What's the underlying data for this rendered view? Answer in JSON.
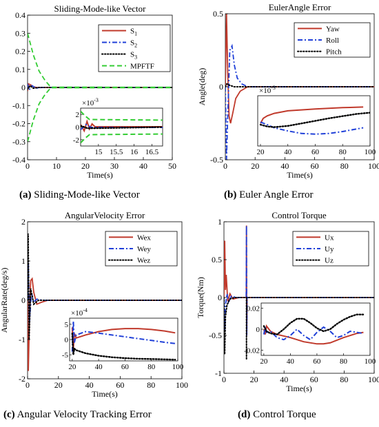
{
  "chart_data": [
    {
      "id": "a",
      "type": "line",
      "title": "Sliding-Mode-like Vector",
      "xlabel": "Time(s)",
      "ylabel": "",
      "xlim": [
        0,
        50
      ],
      "ylim": [
        -0.4,
        0.4
      ],
      "xticks": [
        "0",
        "10",
        "20",
        "30",
        "40",
        "50"
      ],
      "yticks": [
        "-0.4",
        "-0.3",
        "-0.2",
        "-0.1",
        "0",
        "0.1",
        "0.2",
        "0.3",
        "0.4"
      ],
      "legend": [
        "S1",
        "S2",
        "S3",
        "MPFTF"
      ],
      "legend_base": [
        "S",
        "S",
        "S",
        "MPFTF"
      ],
      "legend_sub": [
        "1",
        "2",
        "3",
        ""
      ],
      "legend_position": "top-right",
      "series": [
        {
          "name": "S1",
          "color": "#c0392b",
          "dash": "solid",
          "x": [
            0,
            0.3,
            1,
            2,
            3,
            5,
            10,
            50
          ],
          "y": [
            -0.02,
            0.02,
            0.015,
            0.005,
            0.0,
            0.0,
            0.0,
            0.0
          ]
        },
        {
          "name": "S2",
          "color": "#1f3fd8",
          "dash": "dashdot",
          "x": [
            0,
            0.5,
            1.5,
            3,
            5,
            50
          ],
          "y": [
            0.02,
            -0.015,
            0.01,
            -0.004,
            0.0,
            0.0
          ]
        },
        {
          "name": "S3",
          "color": "#000000",
          "dash": "dotted",
          "x": [
            0,
            0.8,
            2,
            4,
            50
          ],
          "y": [
            -0.01,
            0.01,
            -0.004,
            0.0,
            0.0
          ]
        },
        {
          "name": "MPFTF",
          "color": "#33cc33",
          "dash": "dashed",
          "x": [
            0,
            2,
            4,
            6,
            8,
            50
          ],
          "y": [
            0.3,
            0.18,
            0.09,
            0.04,
            0.002,
            0.001
          ]
        },
        {
          "name": "MPFTF",
          "color": "#33cc33",
          "dash": "dashed",
          "x": [
            0,
            2,
            4,
            6,
            8,
            50
          ],
          "y": [
            -0.3,
            -0.18,
            -0.09,
            -0.04,
            -0.002,
            -0.001
          ]
        }
      ],
      "inset": {
        "multiplier_base": "×10",
        "multiplier_exp": "-3",
        "xlim": [
          14.5,
          16.8
        ],
        "ylim": [
          -3,
          3
        ],
        "xticks": [
          "15",
          "15.5",
          "16",
          "16.5"
        ],
        "yticks": [
          "-2",
          "0",
          "2"
        ],
        "series": [
          {
            "color": "#33cc33",
            "dash": "dashed",
            "x": [
              14.5,
              14.62,
              14.75,
              16.8
            ],
            "y": [
              2.5,
              1.8,
              1.2,
              1.1
            ]
          },
          {
            "color": "#33cc33",
            "dash": "dashed",
            "x": [
              14.5,
              14.62,
              14.75,
              16.8
            ],
            "y": [
              -2.5,
              -1.8,
              -1.2,
              -1.1
            ]
          },
          {
            "color": "#c0392b",
            "dash": "solid",
            "x": [
              14.5,
              14.6,
              14.68,
              14.75,
              14.82,
              14.9,
              16.8
            ],
            "y": [
              0.4,
              -0.6,
              0.9,
              -0.3,
              0.5,
              0.05,
              0.05
            ]
          },
          {
            "color": "#1f3fd8",
            "dash": "dashdot",
            "x": [
              14.5,
              14.65,
              14.8,
              16.8
            ],
            "y": [
              -0.4,
              0.4,
              -0.05,
              -0.05
            ]
          },
          {
            "color": "#000000",
            "dash": "dotted",
            "x": [
              14.5,
              14.7,
              16.8
            ],
            "y": [
              0.2,
              -0.2,
              0.0
            ]
          }
        ]
      },
      "caption_bold": "(a)",
      "caption_text": " Sliding-Mode-like Vector"
    },
    {
      "id": "b",
      "type": "line",
      "title": "EulerAngle  Error",
      "xlabel": "Time(s)",
      "ylabel": "Angle(deg)",
      "xlim": [
        0,
        100
      ],
      "ylim": [
        -0.5,
        0.5
      ],
      "xticks": [
        "0",
        "20",
        "40",
        "60",
        "80",
        "100"
      ],
      "yticks": [
        "-0.5",
        "0",
        "0.5"
      ],
      "legend": [
        "Yaw",
        "Roll",
        "Pitch"
      ],
      "legend_base": [
        "Yaw",
        "Roll",
        "Pitch"
      ],
      "legend_sub": [
        "",
        "",
        ""
      ],
      "legend_position": "top-right",
      "series": [
        {
          "name": "Yaw",
          "color": "#c0392b",
          "dash": "solid",
          "x": [
            0,
            0.8,
            1.6,
            2.5,
            3.5,
            5,
            7,
            10,
            15,
            100
          ],
          "y": [
            0.0,
            0.5,
            0.1,
            -0.2,
            -0.25,
            -0.18,
            -0.08,
            -0.03,
            0.0,
            0.0
          ]
        },
        {
          "name": "Roll",
          "color": "#1f3fd8",
          "dash": "dashdot",
          "x": [
            0,
            0.8,
            1.6,
            3,
            4.5,
            6,
            8,
            11,
            15,
            100
          ],
          "y": [
            0.0,
            -0.5,
            -0.2,
            0.25,
            0.28,
            0.15,
            0.06,
            0.02,
            0.0,
            0.0
          ]
        },
        {
          "name": "Pitch",
          "color": "#000000",
          "dash": "dotted",
          "x": [
            0,
            1,
            3,
            6,
            10,
            100
          ],
          "y": [
            0.0,
            0.02,
            0.01,
            0.0,
            0.0,
            0.0
          ]
        }
      ],
      "inset": {
        "multiplier_base": "×10",
        "multiplier_exp": "-3",
        "xlim": [
          18,
          100
        ],
        "ylim": [
          -2,
          2
        ],
        "xticks": [
          "20",
          "40",
          "60",
          "80",
          "100"
        ],
        "yticks": [],
        "series": [
          {
            "color": "#c0392b",
            "dash": "solid",
            "x": [
              20,
              22,
              25,
              30,
              40,
              60,
              80,
              95
            ],
            "y": [
              -0.2,
              0.2,
              0.4,
              0.6,
              0.8,
              0.95,
              1.05,
              1.1
            ]
          },
          {
            "color": "#1f3fd8",
            "dash": "dashdot",
            "x": [
              20,
              25,
              30,
              40,
              50,
              60,
              70,
              80,
              95
            ],
            "y": [
              -0.1,
              -0.3,
              -0.55,
              -0.8,
              -1.0,
              -1.05,
              -1.0,
              -0.85,
              -0.55
            ]
          },
          {
            "color": "#000000",
            "dash": "dotted",
            "x": [
              20,
              25,
              30,
              40,
              50,
              60,
              70,
              80,
              90,
              100
            ],
            "y": [
              -0.3,
              -0.45,
              -0.5,
              -0.4,
              -0.2,
              0.0,
              0.2,
              0.38,
              0.55,
              0.65
            ]
          }
        ]
      },
      "caption_bold": "(b)",
      "caption_text": " Euler Angle Error"
    },
    {
      "id": "c",
      "type": "line",
      "title": "AngularVelocity  Error",
      "xlabel": "Time(s)",
      "ylabel": "AngularRate(deg/s)",
      "xlim": [
        0,
        100
      ],
      "ylim": [
        -2,
        2
      ],
      "xticks": [
        "0",
        "20",
        "40",
        "60",
        "80",
        "100"
      ],
      "yticks": [
        "-2",
        "-1",
        "0",
        "1",
        "2"
      ],
      "legend": [
        "Wex",
        "Wey",
        "Wez"
      ],
      "legend_base": [
        "Wex",
        "Wey",
        "Wez"
      ],
      "legend_sub": [
        "",
        "",
        ""
      ],
      "legend_position": "top-right",
      "series": [
        {
          "name": "Wex",
          "color": "#c0392b",
          "dash": "solid",
          "x": [
            0,
            0.5,
            1.2,
            2,
            3,
            4,
            6,
            9,
            13,
            100
          ],
          "y": [
            0.0,
            -1.8,
            -0.5,
            0.5,
            0.55,
            0.2,
            -0.1,
            -0.05,
            0.0,
            0.0
          ]
        },
        {
          "name": "Wey",
          "color": "#1f3fd8",
          "dash": "dashdot",
          "x": [
            0,
            0.5,
            1.2,
            2.5,
            4,
            6,
            10,
            100
          ],
          "y": [
            0.0,
            1.0,
            -0.6,
            0.2,
            -0.05,
            0.03,
            0.0,
            0.0
          ]
        },
        {
          "name": "Wez",
          "color": "#000000",
          "dash": "dotted",
          "x": [
            0,
            0.4,
            1,
            2,
            4,
            7,
            100
          ],
          "y": [
            0.0,
            1.7,
            -1.0,
            0.3,
            -0.1,
            0.0,
            0.0
          ]
        }
      ],
      "inset": {
        "multiplier_base": "×10",
        "multiplier_exp": "-4",
        "xlim": [
          18,
          100
        ],
        "ylim": [
          -7,
          7
        ],
        "xticks": [
          "20",
          "40",
          "60",
          "80",
          "100"
        ],
        "yticks": [
          "-5",
          "0",
          "5"
        ],
        "series": [
          {
            "color": "#c0392b",
            "dash": "solid",
            "x": [
              20,
              20.8,
              21.6,
              23,
              30,
              40,
              50,
              60,
              70,
              80,
              90,
              98
            ],
            "y": [
              4,
              -3,
              2,
              0.5,
              1.5,
              2.6,
              3.3,
              3.6,
              3.6,
              3.3,
              2.8,
              2.2
            ]
          },
          {
            "color": "#1f3fd8",
            "dash": "dashdot",
            "x": [
              20,
              20.8,
              21.6,
              23,
              30,
              40,
              50,
              60,
              70,
              80,
              90,
              98
            ],
            "y": [
              -4,
              6,
              -1,
              1.5,
              2.6,
              2.1,
              1.5,
              0.9,
              0.3,
              -0.3,
              -0.9,
              -1.3
            ]
          },
          {
            "color": "#000000",
            "dash": "dotted",
            "x": [
              20,
              20.8,
              21.6,
              23,
              30,
              40,
              50,
              60,
              70,
              80,
              90,
              98
            ],
            "y": [
              2,
              -5,
              -3,
              -3.5,
              -4.5,
              -5.3,
              -5.8,
              -6.1,
              -6.3,
              -6.4,
              -6.5,
              -6.6
            ]
          }
        ]
      },
      "caption_bold": "(c)",
      "caption_text": " Angular Velocity Tracking Error"
    },
    {
      "id": "d",
      "type": "line",
      "title": "Control Torque",
      "xlabel": "Time(s)",
      "ylabel": "Torque(Nm)",
      "xlim": [
        0,
        100
      ],
      "ylim": [
        -1,
        1
      ],
      "xticks": [
        "0",
        "20",
        "40",
        "60",
        "80",
        "100"
      ],
      "yticks": [
        "-1",
        "-0.5",
        "0",
        "0.5",
        "1"
      ],
      "legend": [
        "Ux",
        "Uy",
        "Uz"
      ],
      "legend_base": [
        "Ux",
        "Uy",
        "Uz"
      ],
      "legend_sub": [
        "",
        "",
        ""
      ],
      "legend_position": "top-right",
      "series": [
        {
          "name": "Ux",
          "color": "#c0392b",
          "dash": "solid",
          "x": [
            0,
            0.5,
            1,
            1.5,
            2.5,
            4,
            6,
            10,
            14.8,
            15,
            15.2,
            15.4,
            100
          ],
          "y": [
            0.0,
            0.75,
            0.1,
            0.3,
            -0.05,
            0.05,
            -0.02,
            0.0,
            0.0,
            0.95,
            -0.5,
            0.0,
            0.0
          ]
        },
        {
          "name": "Uy",
          "color": "#1f3fd8",
          "dash": "dashdot",
          "x": [
            0,
            0.5,
            1,
            2,
            3,
            5,
            8,
            14.8,
            15,
            15.2,
            15.4,
            100
          ],
          "y": [
            0.0,
            -0.45,
            -0.1,
            0.05,
            -0.06,
            0.02,
            0.0,
            0.0,
            0.95,
            -0.5,
            0.0,
            0.0
          ]
        },
        {
          "name": "Uz",
          "color": "#000000",
          "dash": "dotted",
          "x": [
            0,
            0.5,
            1,
            2,
            4,
            7,
            15,
            15,
            15,
            100
          ],
          "y": [
            0.0,
            -0.75,
            -0.25,
            -0.1,
            -0.02,
            0.0,
            0.0,
            -0.82,
            0.0,
            0.0
          ]
        }
      ],
      "inset": {
        "multiplier_base": "",
        "multiplier_exp": "",
        "xlim": [
          18,
          100
        ],
        "ylim": [
          -0.025,
          0.025
        ],
        "xticks": [
          "20",
          "40",
          "60",
          "80",
          "100"
        ],
        "yticks": [
          "-0.02",
          "0",
          "0.02"
        ],
        "series": [
          {
            "color": "#c0392b",
            "dash": "solid",
            "x": [
              20,
              21,
              22,
              25,
              30,
              40,
              50,
              60,
              65,
              70,
              80,
              90,
              95
            ],
            "y": [
              0.0,
              -0.005,
              0.003,
              -0.002,
              -0.005,
              -0.008,
              -0.012,
              -0.014,
              -0.014,
              -0.013,
              -0.008,
              -0.004,
              -0.003
            ]
          },
          {
            "color": "#1f3fd8",
            "dash": "dashdot",
            "x": [
              20,
              21,
              22,
              25,
              30,
              35,
              40,
              45,
              50,
              55,
              60,
              65,
              70,
              75,
              80,
              85,
              90,
              95
            ],
            "y": [
              -0.005,
              0.002,
              -0.003,
              -0.002,
              -0.008,
              -0.01,
              -0.006,
              0.0,
              -0.006,
              -0.01,
              -0.003,
              0.002,
              -0.002,
              -0.008,
              -0.006,
              -0.002,
              -0.003,
              -0.004
            ]
          },
          {
            "color": "#000000",
            "dash": "dotted",
            "x": [
              20,
              22,
              25,
              30,
              35,
              40,
              45,
              50,
              55,
              60,
              65,
              70,
              75,
              80,
              85,
              90,
              95
            ],
            "y": [
              0.003,
              -0.002,
              -0.004,
              -0.005,
              0.0,
              0.006,
              0.01,
              0.01,
              0.006,
              0.001,
              -0.002,
              0.0,
              0.005,
              0.009,
              0.012,
              0.014,
              0.014
            ]
          }
        ]
      },
      "caption_bold": "(d)",
      "caption_text": " Control Torque"
    }
  ]
}
